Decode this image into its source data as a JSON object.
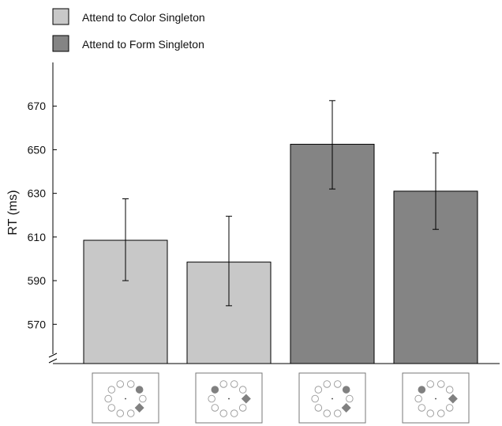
{
  "chart_data": {
    "type": "bar",
    "ylabel": "RT (ms)",
    "xlabel": "",
    "ylim": [
      552,
      690
    ],
    "yticks": [
      570,
      590,
      610,
      630,
      650,
      670
    ],
    "y_axis_break": true,
    "grid": false,
    "legend_position": "top-left",
    "series": [
      {
        "name": "Attend to Color Singleton",
        "color": "#c8c8c8"
      },
      {
        "name": "Attend to Form Singleton",
        "color": "#848484"
      }
    ],
    "bars": [
      {
        "series": 0,
        "value": 608.5,
        "error_low": 590,
        "error_high": 627.5
      },
      {
        "series": 0,
        "value": 598.5,
        "error_low": 578.5,
        "error_high": 619.5
      },
      {
        "series": 1,
        "value": 652.5,
        "error_low": 632,
        "error_high": 672.5
      },
      {
        "series": 1,
        "value": 631,
        "error_low": 613.5,
        "error_high": 648.5
      }
    ],
    "stimulus_icons": [
      {
        "circle_pos": "upper-right",
        "diamond_pos": "lower-right"
      },
      {
        "circle_pos": "upper-left",
        "diamond_pos": "right"
      },
      {
        "circle_pos": "upper-right",
        "diamond_pos": "lower-right"
      },
      {
        "circle_pos": "upper-left",
        "diamond_pos": "right"
      }
    ]
  }
}
